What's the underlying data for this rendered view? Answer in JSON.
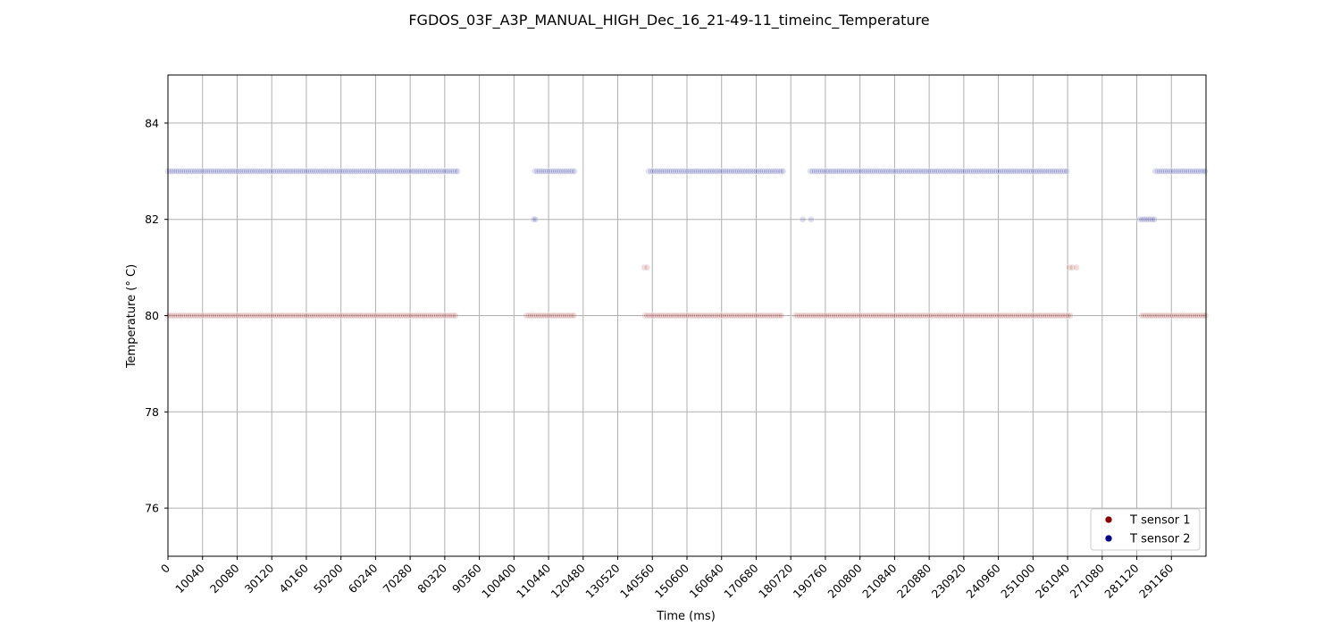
{
  "chart_data": {
    "type": "scatter",
    "title": "FGDOS_03F_A3P_MANUAL_HIGH_Dec_16_21-49-11_timeinc_Temperature",
    "xlabel": "Time (ms)",
    "ylabel": "Temperature (° C)",
    "xlim": [
      0,
      301200
    ],
    "ylim": [
      75,
      85
    ],
    "xticks": [
      0,
      10040,
      20080,
      30120,
      40160,
      50200,
      60240,
      70280,
      80320,
      90360,
      100400,
      110440,
      120480,
      130520,
      140560,
      150600,
      160640,
      170680,
      180720,
      190760,
      200800,
      210840,
      220880,
      230920,
      240960,
      251000,
      261040,
      271080,
      281120,
      291160
    ],
    "xtick_labels": [
      "0",
      "10040",
      "20080",
      "30120",
      "40160",
      "50200",
      "60240",
      "70280",
      "80320",
      "90360",
      "100400",
      "110440",
      "120480",
      "130520",
      "140560",
      "150600",
      "160640",
      "170680",
      "180720",
      "190760",
      "200800",
      "210840",
      "220880",
      "230920",
      "240960",
      "251000",
      "261040",
      "271080",
      "281120",
      "291160"
    ],
    "yticks": [
      76,
      78,
      80,
      82,
      84
    ],
    "ytick_labels": [
      "76",
      "78",
      "80",
      "82",
      "84"
    ],
    "grid": true,
    "legend_position": "bottom-right",
    "series": [
      {
        "name": "T sensor 1",
        "color": "#8b0000",
        "segments": [
          {
            "x_start": 0,
            "x_end": 83400,
            "step": 600,
            "y": 80
          },
          {
            "x_start": 104000,
            "x_end": 118000,
            "step": 600,
            "y": 80
          },
          {
            "x_start": 138400,
            "x_end": 178000,
            "step": 600,
            "y": 80
          },
          {
            "x_start": 182000,
            "x_end": 262000,
            "step": 600,
            "y": 80
          },
          {
            "x_start": 282500,
            "x_end": 301200,
            "step": 600,
            "y": 80
          }
        ],
        "points": [
          {
            "x": 138200,
            "y": 81
          },
          {
            "x": 139000,
            "y": 81
          },
          {
            "x": 261600,
            "y": 81
          },
          {
            "x": 262400,
            "y": 81
          },
          {
            "x": 263600,
            "y": 81
          }
        ]
      },
      {
        "name": "T sensor 2",
        "color": "#00008b",
        "segments": [
          {
            "x_start": 0,
            "x_end": 84000,
            "step": 600,
            "y": 83
          },
          {
            "x_start": 106500,
            "x_end": 118000,
            "step": 600,
            "y": 83
          },
          {
            "x_start": 139500,
            "x_end": 179000,
            "step": 600,
            "y": 83
          },
          {
            "x_start": 186400,
            "x_end": 261000,
            "step": 600,
            "y": 83
          },
          {
            "x_start": 286500,
            "x_end": 301200,
            "step": 600,
            "y": 83
          },
          {
            "x_start": 282000,
            "x_end": 286300,
            "step": 600,
            "y": 82
          }
        ],
        "points": [
          {
            "x": 106100,
            "y": 82
          },
          {
            "x": 106600,
            "y": 82
          },
          {
            "x": 184200,
            "y": 82
          },
          {
            "x": 186600,
            "y": 82
          }
        ]
      }
    ]
  }
}
